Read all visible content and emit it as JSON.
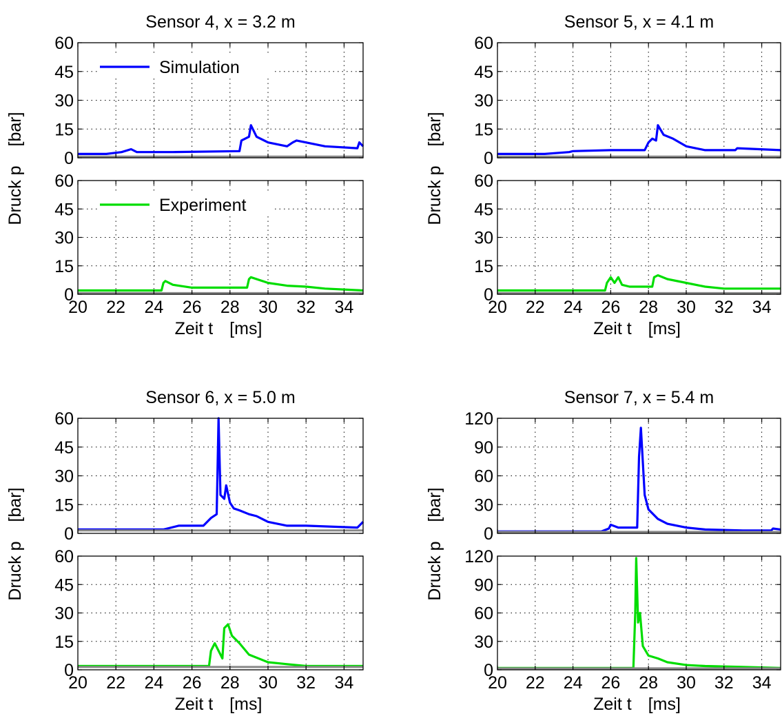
{
  "figure": {
    "xlabel_main": "Zeit t",
    "xlabel_unit": "[ms]",
    "ylabel_main": "Druck p",
    "ylabel_unit": "[bar]"
  },
  "chart_data": [
    {
      "type": "line",
      "title": "Sensor 4, x = 3.2 m",
      "xlim": [
        20,
        35
      ],
      "xticks": [
        "20",
        "22",
        "24",
        "26",
        "28",
        "30",
        "32",
        "34"
      ],
      "grid": true,
      "panels": [
        {
          "series": [
            {
              "name": "Simulation",
              "color": "#0000ff",
              "x": [
                20,
                21.5,
                22.3,
                22.8,
                23.1,
                25,
                28.5,
                28.6,
                29.0,
                29.1,
                29.4,
                30,
                31,
                31.3,
                31.5,
                33,
                34.7,
                34.8,
                35
              ],
              "y": [
                2,
                2,
                3,
                4.5,
                3,
                3,
                3.5,
                9,
                11,
                17,
                11,
                8,
                6,
                8,
                9,
                6,
                5,
                8,
                6
              ]
            },
            {
              "name": "",
              "color": "#888888",
              "x": [
                20,
                35
              ],
              "y": [
                0.6,
                0.6
              ]
            }
          ],
          "ylim": [
            0,
            60
          ],
          "yticks": [
            "0",
            "15",
            "30",
            "45",
            "60"
          ]
        },
        {
          "series": [
            {
              "name": "Experiment",
              "color": "#00dd00",
              "x": [
                20,
                24.4,
                24.5,
                24.6,
                25,
                26,
                28.9,
                29.0,
                29.1,
                30,
                31,
                32,
                33,
                35
              ],
              "y": [
                2,
                2,
                6,
                7,
                5,
                3.5,
                3.5,
                8,
                9,
                6,
                4.5,
                4,
                3,
                2
              ]
            },
            {
              "name": "",
              "color": "#888888",
              "x": [
                20,
                35
              ],
              "y": [
                0.6,
                0.6
              ]
            }
          ],
          "ylim": [
            0,
            60
          ],
          "yticks": [
            "0",
            "15",
            "30",
            "45",
            "60"
          ]
        }
      ]
    },
    {
      "type": "line",
      "title": "Sensor 5, x = 4.1 m",
      "xlim": [
        20,
        35
      ],
      "xticks": [
        "20",
        "22",
        "24",
        "26",
        "28",
        "30",
        "32",
        "34"
      ],
      "grid": true,
      "panels": [
        {
          "series": [
            {
              "name": "Simulation",
              "color": "#0000ff",
              "x": [
                20,
                22.5,
                23.8,
                24,
                26,
                27.8,
                28.0,
                28.2,
                28.4,
                28.5,
                28.8,
                29.3,
                30,
                31,
                32.6,
                32.7,
                35
              ],
              "y": [
                2,
                2,
                3,
                3.5,
                4,
                4,
                8,
                10,
                9,
                17,
                12,
                10,
                6,
                4,
                4,
                5,
                4
              ]
            },
            {
              "name": "",
              "color": "#888888",
              "x": [
                20,
                35
              ],
              "y": [
                0.6,
                0.6
              ]
            }
          ],
          "ylim": [
            0,
            60
          ],
          "yticks": [
            "0",
            "15",
            "30",
            "45",
            "60"
          ]
        },
        {
          "series": [
            {
              "name": "Experiment",
              "color": "#00dd00",
              "x": [
                20,
                25.7,
                25.8,
                26.0,
                26.2,
                26.4,
                26.6,
                27,
                28.2,
                28.3,
                28.5,
                29,
                30,
                31,
                32,
                35
              ],
              "y": [
                2,
                2,
                6,
                9,
                6,
                9,
                5,
                4,
                4,
                9,
                10,
                8,
                6,
                4,
                3,
                3
              ]
            },
            {
              "name": "",
              "color": "#888888",
              "x": [
                20,
                35
              ],
              "y": [
                0.6,
                0.6
              ]
            }
          ],
          "ylim": [
            0,
            60
          ],
          "yticks": [
            "0",
            "15",
            "30",
            "45",
            "60"
          ]
        }
      ]
    },
    {
      "type": "line",
      "title": "Sensor 6, x = 5.0 m",
      "xlim": [
        20,
        35
      ],
      "xticks": [
        "20",
        "22",
        "24",
        "26",
        "28",
        "30",
        "32",
        "34"
      ],
      "grid": true,
      "panels": [
        {
          "series": [
            {
              "name": "Simulation",
              "color": "#0000ff",
              "x": [
                20,
                24.5,
                25.3,
                26.6,
                27.0,
                27.3,
                27.4,
                27.5,
                27.7,
                27.8,
                28.0,
                28.2,
                28.5,
                29,
                29.4,
                30,
                31,
                32,
                34.7,
                35
              ],
              "y": [
                2,
                2,
                4,
                4,
                8,
                10,
                60,
                20,
                18,
                25,
                16,
                13,
                12,
                10,
                9,
                6,
                4,
                4,
                3,
                6
              ]
            },
            {
              "name": "",
              "color": "#888888",
              "x": [
                20,
                35
              ],
              "y": [
                1.5,
                1.5
              ]
            }
          ],
          "ylim": [
            0,
            60
          ],
          "yticks": [
            "0",
            "15",
            "30",
            "45",
            "60"
          ]
        },
        {
          "series": [
            {
              "name": "Experiment",
              "color": "#00dd00",
              "x": [
                20,
                26.9,
                27.0,
                27.2,
                27.6,
                27.7,
                27.9,
                28.1,
                28.5,
                29,
                30,
                31,
                32,
                35
              ],
              "y": [
                2,
                2,
                10,
                14,
                6,
                22,
                24,
                18,
                14,
                8,
                4,
                3,
                2,
                2
              ]
            },
            {
              "name": "",
              "color": "#888888",
              "x": [
                20,
                35
              ],
              "y": [
                1.5,
                1.5
              ]
            }
          ],
          "ylim": [
            0,
            60
          ],
          "yticks": [
            "0",
            "15",
            "30",
            "45",
            "60"
          ]
        }
      ]
    },
    {
      "type": "line",
      "title": "Sensor 7, x = 5.4 m",
      "xlim": [
        20,
        35
      ],
      "xticks": [
        "20",
        "22",
        "24",
        "26",
        "28",
        "30",
        "32",
        "34"
      ],
      "grid": true,
      "panels": [
        {
          "series": [
            {
              "name": "Simulation",
              "color": "#0000ff",
              "x": [
                20,
                25.5,
                25.9,
                26.0,
                26.4,
                27.4,
                27.5,
                27.6,
                27.8,
                28.0,
                28.5,
                29,
                30,
                31,
                33,
                34.5,
                34.6,
                35
              ],
              "y": [
                2,
                2,
                5,
                9,
                6,
                6,
                80,
                110,
                40,
                25,
                15,
                10,
                6,
                4,
                3,
                3,
                5,
                4
              ]
            },
            {
              "name": "",
              "color": "#888888",
              "x": [
                20,
                35
              ],
              "y": [
                1.5,
                1.5
              ]
            }
          ],
          "ylim": [
            0,
            120
          ],
          "yticks": [
            "0",
            "30",
            "60",
            "90",
            "120"
          ]
        },
        {
          "series": [
            {
              "name": "Experiment",
              "color": "#00dd00",
              "x": [
                20,
                27.2,
                27.3,
                27.35,
                27.45,
                27.55,
                27.7,
                28.0,
                28.5,
                29,
                30,
                31,
                33,
                35
              ],
              "y": [
                2,
                2,
                60,
                118,
                50,
                60,
                25,
                15,
                12,
                8,
                5,
                4,
                3,
                2
              ]
            },
            {
              "name": "",
              "color": "#888888",
              "x": [
                20,
                35
              ],
              "y": [
                1.5,
                1.5
              ]
            }
          ],
          "ylim": [
            0,
            120
          ],
          "yticks": [
            "0",
            "30",
            "60",
            "90",
            "120"
          ]
        }
      ]
    }
  ]
}
